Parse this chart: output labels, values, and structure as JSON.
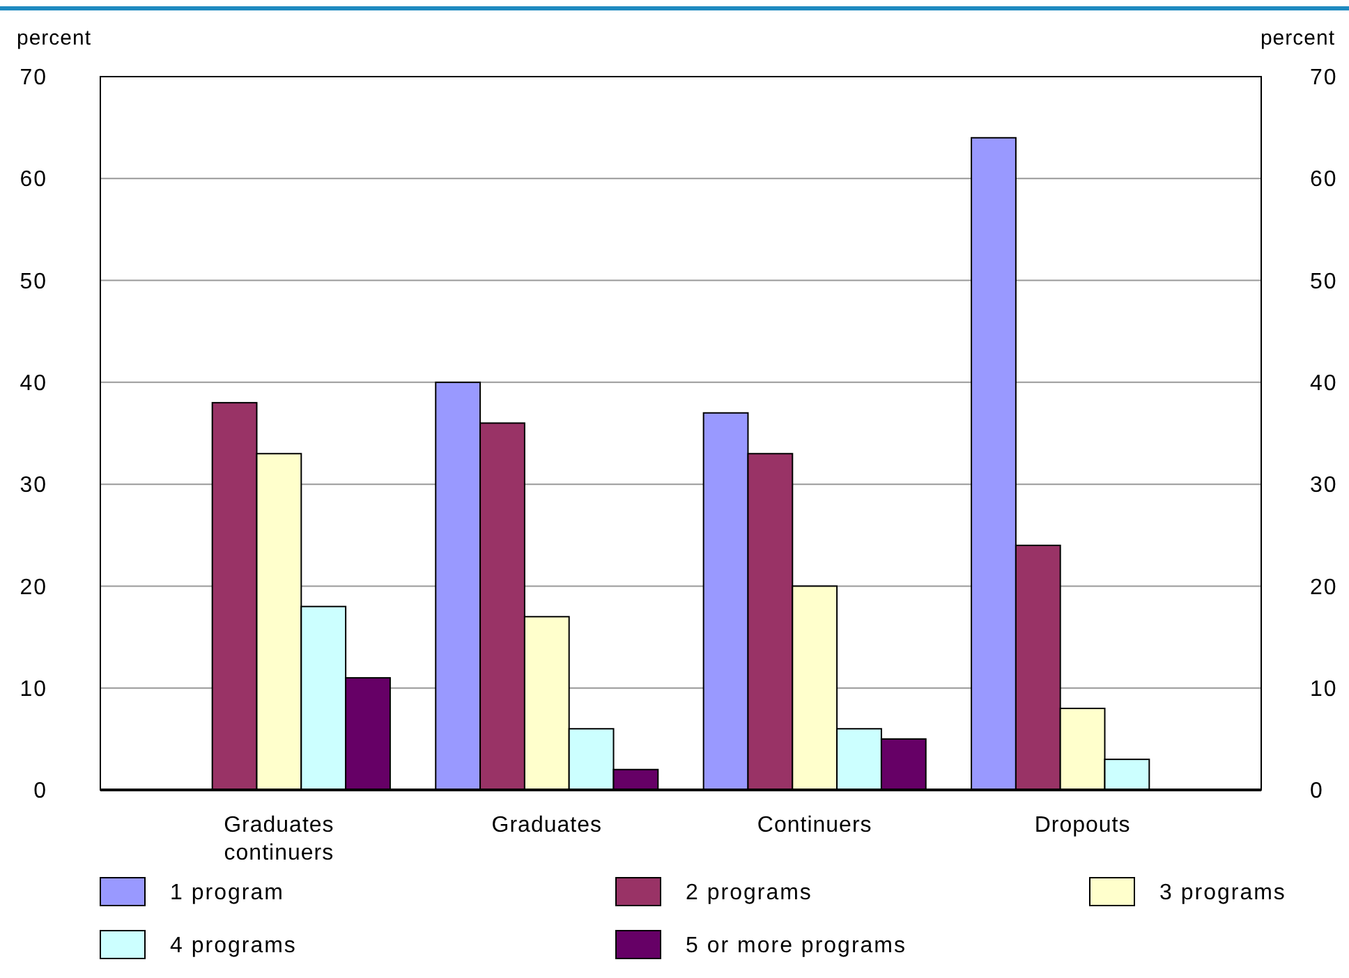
{
  "chart_data": {
    "type": "bar",
    "ylabel": "percent",
    "y2label": "percent",
    "categories": [
      "Graduates continuers",
      "Graduates",
      "Continuers",
      "Dropouts"
    ],
    "series": [
      {
        "name": "1 program",
        "color": "#9999ff",
        "values": [
          null,
          40,
          37,
          64
        ]
      },
      {
        "name": "2 programs",
        "color": "#993366",
        "values": [
          38,
          36,
          33,
          24
        ]
      },
      {
        "name": "3 programs",
        "color": "#ffffcc",
        "values": [
          33,
          17,
          20,
          8
        ]
      },
      {
        "name": "4 programs",
        "color": "#ccffff",
        "values": [
          18,
          6,
          6,
          3
        ]
      },
      {
        "name": "5 or more programs",
        "color": "#660066",
        "values": [
          11,
          2,
          5,
          null
        ]
      }
    ],
    "ylim": [
      0,
      70
    ],
    "yticks": [
      0,
      10,
      20,
      30,
      40,
      50,
      60,
      70
    ],
    "y2lim": [
      0,
      70
    ],
    "y2ticks": [
      0,
      10,
      20,
      30,
      40,
      50,
      60,
      70
    ],
    "grid": "y",
    "legend": "bottom"
  }
}
